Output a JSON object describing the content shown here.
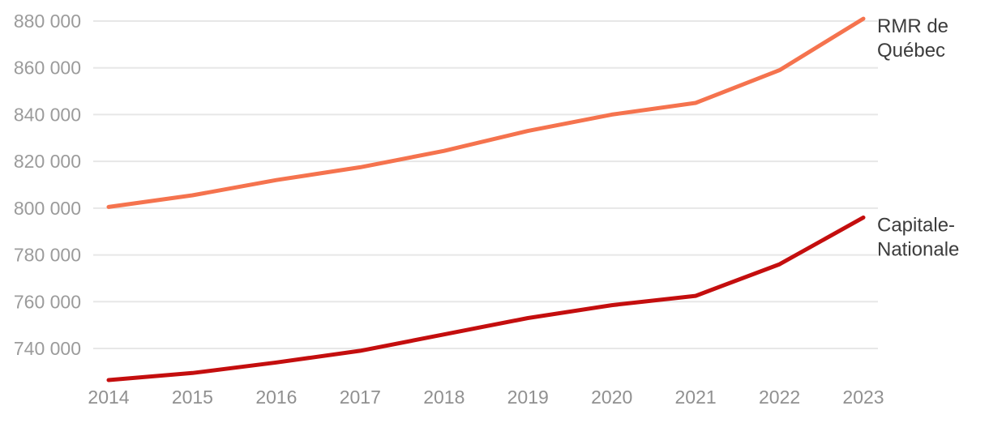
{
  "chart_data": {
    "type": "line",
    "title": "",
    "xlabel": "",
    "ylabel": "",
    "categories": [
      "2014",
      "2015",
      "2016",
      "2017",
      "2018",
      "2019",
      "2020",
      "2021",
      "2022",
      "2023"
    ],
    "y_ticks": [
      {
        "value": 740000,
        "label": "740 000"
      },
      {
        "value": 760000,
        "label": "760 000"
      },
      {
        "value": 780000,
        "label": "780 000"
      },
      {
        "value": 800000,
        "label": "800 000"
      },
      {
        "value": 820000,
        "label": "820 000"
      },
      {
        "value": 840000,
        "label": "840 000"
      },
      {
        "value": 860000,
        "label": "860 000"
      },
      {
        "value": 880000,
        "label": "880 000"
      }
    ],
    "ylim": [
      723000,
      884000
    ],
    "grid": "horizontal-only",
    "legend_position": "end-of-line-labels-right",
    "series": [
      {
        "name": "RMR de Québec",
        "label_lines": [
          "RMR de",
          "Québec"
        ],
        "color": "#F5734E",
        "values": [
          800500,
          805500,
          812000,
          817500,
          824500,
          833000,
          840000,
          845000,
          859000,
          881000
        ]
      },
      {
        "name": "Capitale-Nationale",
        "label_lines": [
          "Capitale-",
          "Nationale"
        ],
        "color": "#C40E0E",
        "values": [
          726500,
          729500,
          734000,
          739000,
          746000,
          753000,
          758500,
          762500,
          776000,
          796000
        ]
      }
    ]
  },
  "colors": {
    "background": "#FFFFFF",
    "gridline": "#E7E7E7",
    "y_tick_text": "#9B9B9B",
    "x_tick_text": "#909090",
    "series_label_text": "#3C3C3C",
    "series_rmr": "#F5734E",
    "series_capitale_nationale": "#C40E0E"
  }
}
